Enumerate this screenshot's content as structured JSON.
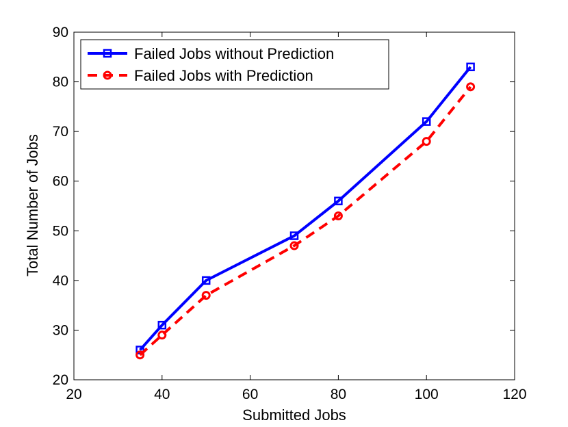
{
  "chart_data": {
    "type": "line",
    "title": "",
    "xlabel": "Submitted Jobs",
    "ylabel": "Total Number of Jobs",
    "xlim": [
      20,
      120
    ],
    "ylim": [
      20,
      90
    ],
    "xticks": [
      20,
      40,
      60,
      80,
      100,
      120
    ],
    "yticks": [
      20,
      30,
      40,
      50,
      60,
      70,
      80,
      90
    ],
    "grid": false,
    "legend_position": "top-left",
    "series": [
      {
        "name": "Failed Jobs without Prediction",
        "color": "#0000ff",
        "line_style": "solid",
        "marker": "square",
        "x": [
          35,
          40,
          50,
          70,
          80,
          100,
          110
        ],
        "y": [
          26,
          31,
          40,
          49,
          56,
          72,
          83
        ]
      },
      {
        "name": "Failed Jobs with Prediction",
        "color": "#ff0000",
        "line_style": "dashed",
        "marker": "circle",
        "x": [
          35,
          40,
          50,
          70,
          80,
          100,
          110
        ],
        "y": [
          25,
          29,
          37,
          47,
          53,
          68,
          79
        ]
      }
    ]
  }
}
